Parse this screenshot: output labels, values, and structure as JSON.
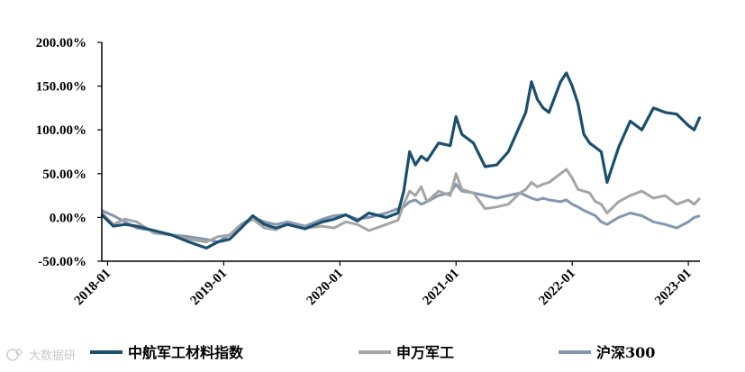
{
  "chart_data": {
    "type": "line",
    "title": "",
    "xlabel": "",
    "ylabel": "",
    "ylim": [
      -0.5,
      2.0
    ],
    "y_ticks": [
      "200.00%",
      "150.00%",
      "100.00%",
      "50.00%",
      "0.00%",
      "-50.00%"
    ],
    "y_tick_values": [
      2.0,
      1.5,
      1.0,
      0.5,
      0.0,
      -0.5
    ],
    "x_ticks": [
      "2018-01",
      "2019-01",
      "2020-01",
      "2021-01",
      "2022-01",
      "2023-01"
    ],
    "x_tick_values": [
      2018.0,
      2019.0,
      2020.0,
      2021.0,
      2022.0,
      2023.0
    ],
    "xlim": [
      2017.95,
      2023.1
    ],
    "grid": false,
    "legend_position": "bottom",
    "series": [
      {
        "name": "中航军工材料指数",
        "color": "#1a4f6e",
        "x": [
          2017.95,
          2018.05,
          2018.15,
          2018.25,
          2018.4,
          2018.55,
          2018.7,
          2018.85,
          2018.95,
          2019.05,
          2019.15,
          2019.25,
          2019.35,
          2019.45,
          2019.55,
          2019.7,
          2019.85,
          2019.95,
          2020.05,
          2020.15,
          2020.25,
          2020.4,
          2020.5,
          2020.55,
          2020.6,
          2020.65,
          2020.7,
          2020.75,
          2020.85,
          2020.95,
          2021.0,
          2021.05,
          2021.15,
          2021.25,
          2021.35,
          2021.45,
          2021.55,
          2021.6,
          2021.65,
          2021.7,
          2021.75,
          2021.8,
          2021.9,
          2021.95,
          2022.0,
          2022.05,
          2022.1,
          2022.15,
          2022.2,
          2022.25,
          2022.3,
          2022.4,
          2022.5,
          2022.6,
          2022.7,
          2022.8,
          2022.9,
          2023.0,
          2023.05,
          2023.1
        ],
        "values": [
          0.03,
          -0.1,
          -0.08,
          -0.1,
          -0.15,
          -0.2,
          -0.28,
          -0.35,
          -0.28,
          -0.25,
          -0.12,
          0.02,
          -0.08,
          -0.12,
          -0.08,
          -0.13,
          -0.05,
          -0.02,
          0.03,
          -0.04,
          0.05,
          0.0,
          0.05,
          0.3,
          0.75,
          0.6,
          0.7,
          0.65,
          0.85,
          0.82,
          1.15,
          0.95,
          0.85,
          0.58,
          0.6,
          0.75,
          1.05,
          1.2,
          1.55,
          1.35,
          1.25,
          1.2,
          1.55,
          1.65,
          1.5,
          1.3,
          0.95,
          0.85,
          0.8,
          0.75,
          0.4,
          0.8,
          1.1,
          1.0,
          1.25,
          1.2,
          1.18,
          1.05,
          1.0,
          1.15
        ]
      },
      {
        "name": "申万军工",
        "color": "#a5a5a5",
        "x": [
          2017.95,
          2018.05,
          2018.15,
          2018.25,
          2018.4,
          2018.55,
          2018.7,
          2018.85,
          2018.95,
          2019.05,
          2019.15,
          2019.25,
          2019.35,
          2019.45,
          2019.55,
          2019.7,
          2019.85,
          2019.95,
          2020.05,
          2020.15,
          2020.25,
          2020.4,
          2020.5,
          2020.55,
          2020.6,
          2020.65,
          2020.7,
          2020.75,
          2020.85,
          2020.95,
          2021.0,
          2021.05,
          2021.15,
          2021.25,
          2021.35,
          2021.45,
          2021.55,
          2021.6,
          2021.65,
          2021.7,
          2021.75,
          2021.8,
          2021.9,
          2021.95,
          2022.0,
          2022.05,
          2022.1,
          2022.15,
          2022.2,
          2022.25,
          2022.3,
          2022.4,
          2022.5,
          2022.6,
          2022.7,
          2022.8,
          2022.9,
          2023.0,
          2023.05,
          2023.1
        ],
        "values": [
          0.05,
          -0.08,
          -0.02,
          -0.05,
          -0.18,
          -0.2,
          -0.25,
          -0.28,
          -0.22,
          -0.2,
          -0.1,
          -0.02,
          -0.12,
          -0.14,
          -0.07,
          -0.12,
          -0.1,
          -0.12,
          -0.05,
          -0.08,
          -0.15,
          -0.08,
          -0.03,
          0.15,
          0.3,
          0.25,
          0.35,
          0.18,
          0.3,
          0.25,
          0.5,
          0.32,
          0.28,
          0.1,
          0.12,
          0.15,
          0.28,
          0.32,
          0.4,
          0.35,
          0.38,
          0.4,
          0.5,
          0.55,
          0.45,
          0.32,
          0.3,
          0.28,
          0.18,
          0.15,
          0.05,
          0.18,
          0.25,
          0.3,
          0.22,
          0.25,
          0.15,
          0.2,
          0.15,
          0.22
        ]
      },
      {
        "name": "沪深300",
        "color": "#8497b0",
        "x": [
          2017.95,
          2018.05,
          2018.15,
          2018.25,
          2018.4,
          2018.55,
          2018.7,
          2018.85,
          2018.95,
          2019.05,
          2019.15,
          2019.25,
          2019.35,
          2019.45,
          2019.55,
          2019.7,
          2019.85,
          2019.95,
          2020.05,
          2020.15,
          2020.25,
          2020.4,
          2020.5,
          2020.55,
          2020.6,
          2020.65,
          2020.7,
          2020.75,
          2020.85,
          2020.95,
          2021.0,
          2021.05,
          2021.15,
          2021.25,
          2021.35,
          2021.45,
          2021.55,
          2021.6,
          2021.65,
          2021.7,
          2021.75,
          2021.8,
          2021.9,
          2021.95,
          2022.0,
          2022.05,
          2022.1,
          2022.15,
          2022.2,
          2022.25,
          2022.3,
          2022.4,
          2022.5,
          2022.6,
          2022.7,
          2022.8,
          2022.9,
          2023.0,
          2023.05,
          2023.1
        ],
        "values": [
          0.08,
          0.02,
          -0.05,
          -0.12,
          -0.15,
          -0.2,
          -0.22,
          -0.25,
          -0.28,
          -0.2,
          -0.08,
          0.0,
          -0.05,
          -0.08,
          -0.05,
          -0.1,
          -0.02,
          0.02,
          0.03,
          -0.02,
          0.0,
          0.05,
          0.1,
          0.12,
          0.18,
          0.2,
          0.15,
          0.18,
          0.25,
          0.28,
          0.38,
          0.3,
          0.28,
          0.25,
          0.22,
          0.25,
          0.28,
          0.25,
          0.22,
          0.2,
          0.22,
          0.2,
          0.18,
          0.2,
          0.15,
          0.12,
          0.08,
          0.05,
          0.02,
          -0.05,
          -0.08,
          0.0,
          0.05,
          0.02,
          -0.05,
          -0.08,
          -0.12,
          -0.05,
          0.0,
          0.02
        ]
      }
    ]
  },
  "watermark": {
    "icon": "logo-icon",
    "text": "大数据研"
  }
}
